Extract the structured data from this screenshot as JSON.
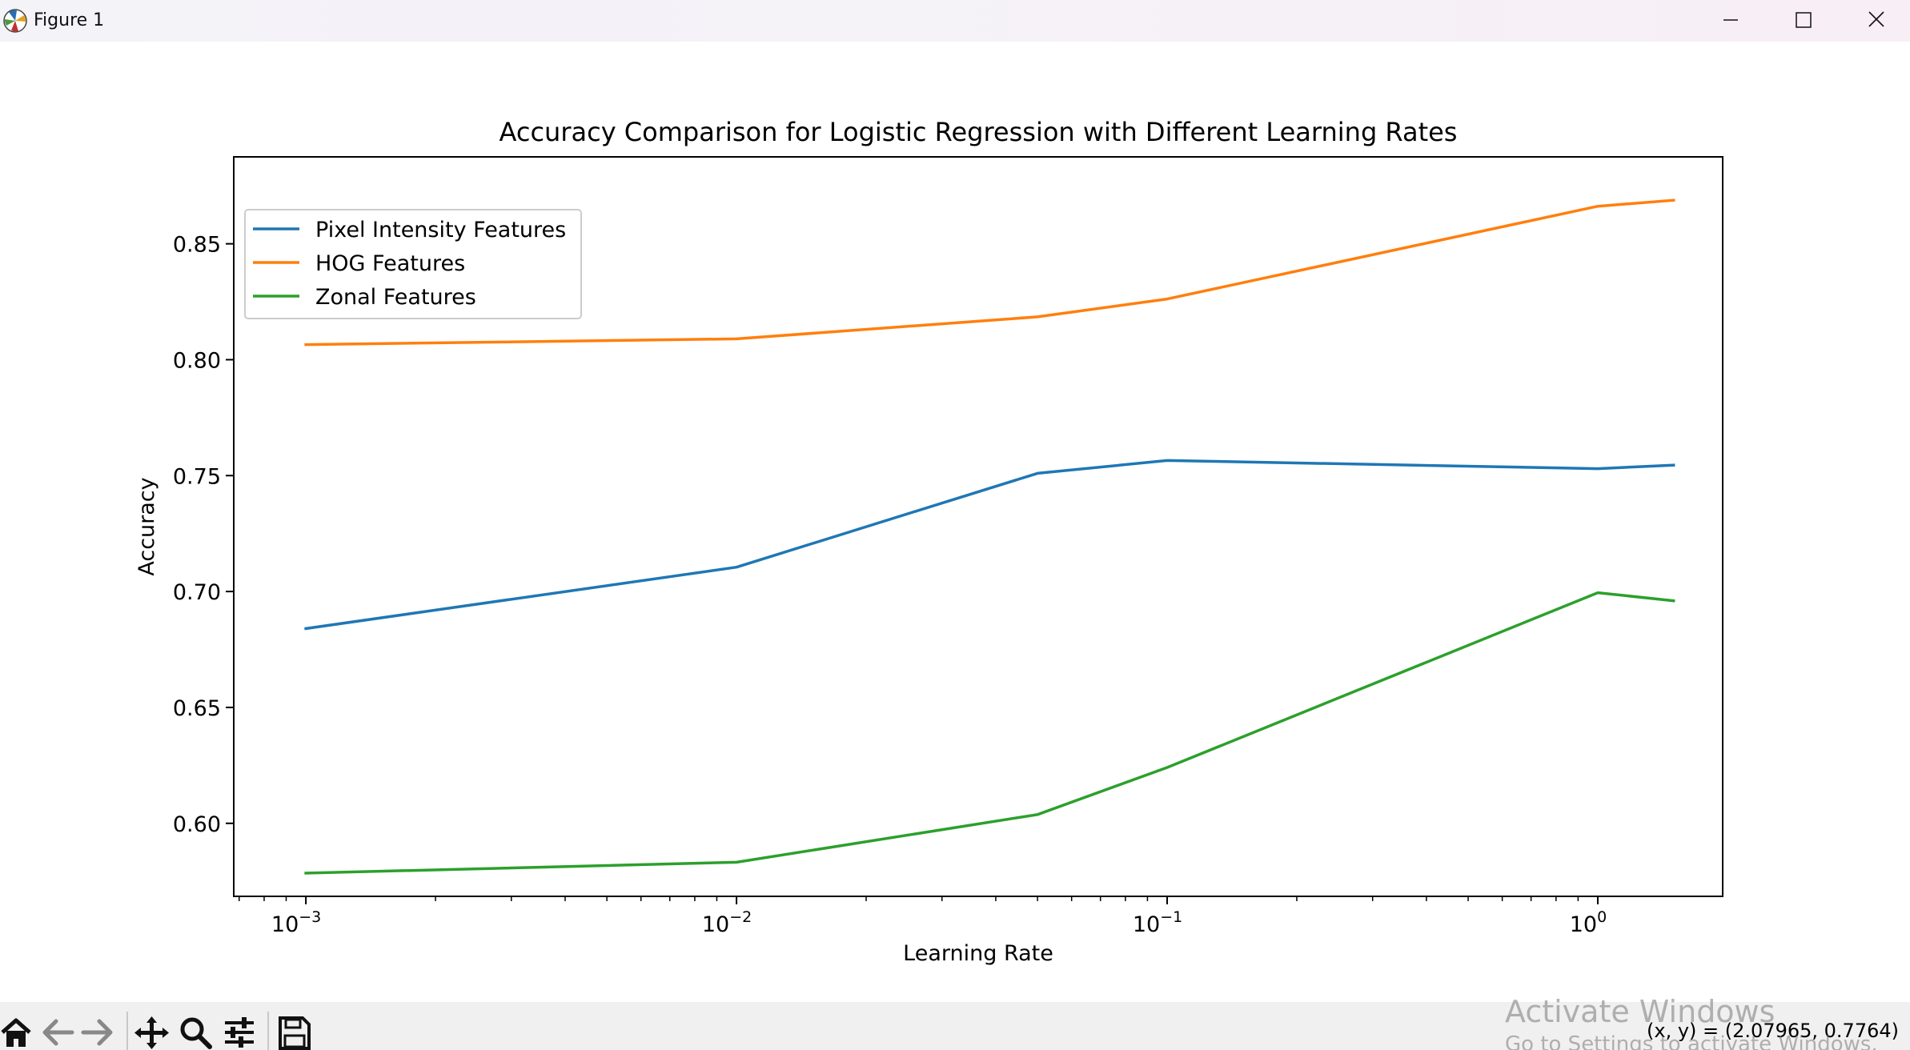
{
  "window": {
    "title": "Figure 1"
  },
  "chart_data": {
    "type": "line",
    "title": "Accuracy Comparison for Logistic Regression with Different Learning Rates",
    "xlabel": "Learning Rate",
    "ylabel": "Accuracy",
    "xscale": "log",
    "x": [
      0.001,
      0.01,
      0.05,
      0.1,
      1.0,
      1.5
    ],
    "xlim": [
      0.00068,
      1.95
    ],
    "ylim": [
      0.5685,
      0.8875
    ],
    "xticks": [
      {
        "value": 0.001,
        "base": "10",
        "exp": "−3"
      },
      {
        "value": 0.01,
        "base": "10",
        "exp": "−2"
      },
      {
        "value": 0.1,
        "base": "10",
        "exp": "−1"
      },
      {
        "value": 1.0,
        "base": "10",
        "exp": "0"
      }
    ],
    "yticks": [
      {
        "value": 0.6,
        "label": "0.60"
      },
      {
        "value": 0.65,
        "label": "0.65"
      },
      {
        "value": 0.7,
        "label": "0.70"
      },
      {
        "value": 0.75,
        "label": "0.75"
      },
      {
        "value": 0.8,
        "label": "0.80"
      },
      {
        "value": 0.85,
        "label": "0.85"
      }
    ],
    "grid": false,
    "legend_position": "top-left",
    "series": [
      {
        "name": "Pixel Intensity Features",
        "color": "#1f77b4",
        "values": [
          0.684,
          0.7105,
          0.751,
          0.7565,
          0.753,
          0.7545
        ]
      },
      {
        "name": "HOG Features",
        "color": "#ff7f0e",
        "values": [
          0.8065,
          0.809,
          0.8185,
          0.8262,
          0.8662,
          0.8688
        ]
      },
      {
        "name": "Zonal Features",
        "color": "#2ca02c",
        "values": [
          0.5785,
          0.5832,
          0.6038,
          0.6241,
          0.6995,
          0.696
        ]
      }
    ]
  },
  "toolbar": {
    "items": [
      "home-icon",
      "back-arrow-icon",
      "forward-arrow-icon",
      "pan-icon",
      "zoom-icon",
      "configure-subplots-icon",
      "save-icon"
    ],
    "coords": "(x, y) = (2.07965, 0.7764)"
  },
  "watermark": {
    "line1": "Activate Windows",
    "line2": "Go to Settings to activate Windows."
  }
}
